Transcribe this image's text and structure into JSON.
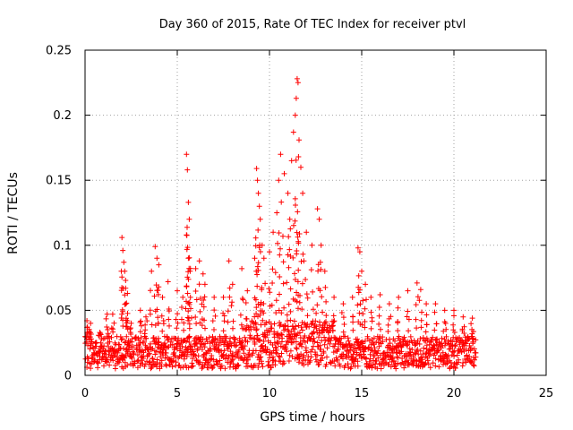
{
  "chart_data": {
    "type": "scatter",
    "title": "Day 360 of 2015, Rate Of TEC Index for receiver ptvl",
    "xlabel": "GPS time / hours",
    "ylabel": "ROTI / TECUs",
    "xlim": [
      0,
      25
    ],
    "ylim": [
      0,
      0.25
    ],
    "x_ticks": [
      0,
      5,
      10,
      15,
      20,
      25
    ],
    "x_tick_labels": [
      "0",
      "5",
      "10",
      "15",
      "20",
      "25"
    ],
    "y_ticks": [
      0,
      0.05,
      0.1,
      0.15,
      0.2,
      0.25
    ],
    "y_tick_labels": [
      "0",
      "0.05",
      "0.1",
      "0.15",
      "0.2",
      "0.25"
    ],
    "grid": true,
    "marker": "+",
    "marker_color": "#ff0000",
    "series": [
      {
        "name": "ROTI",
        "data_x_range": [
          0,
          21.2
        ],
        "baseline_band": [
          0.005,
          0.03
        ],
        "peaks": [
          {
            "x": 0.1,
            "y": 0.042
          },
          {
            "x": 0.3,
            "y": 0.04
          },
          {
            "x": 0.8,
            "y": 0.033
          },
          {
            "x": 1.2,
            "y": 0.047
          },
          {
            "x": 1.5,
            "y": 0.047
          },
          {
            "x": 2.0,
            "y": 0.106
          },
          {
            "x": 2.05,
            "y": 0.096
          },
          {
            "x": 2.1,
            "y": 0.087
          },
          {
            "x": 2.15,
            "y": 0.08
          },
          {
            "x": 2.2,
            "y": 0.073
          },
          {
            "x": 2.3,
            "y": 0.063
          },
          {
            "x": 2.5,
            "y": 0.04
          },
          {
            "x": 3.0,
            "y": 0.05
          },
          {
            "x": 3.3,
            "y": 0.045
          },
          {
            "x": 3.6,
            "y": 0.08
          },
          {
            "x": 3.8,
            "y": 0.099
          },
          {
            "x": 3.9,
            "y": 0.09
          },
          {
            "x": 4.0,
            "y": 0.085
          },
          {
            "x": 4.2,
            "y": 0.06
          },
          {
            "x": 4.5,
            "y": 0.072
          },
          {
            "x": 5.0,
            "y": 0.065
          },
          {
            "x": 5.3,
            "y": 0.06
          },
          {
            "x": 5.5,
            "y": 0.17
          },
          {
            "x": 5.55,
            "y": 0.158
          },
          {
            "x": 5.6,
            "y": 0.133
          },
          {
            "x": 5.65,
            "y": 0.12
          },
          {
            "x": 5.5,
            "y": 0.108
          },
          {
            "x": 5.6,
            "y": 0.09
          },
          {
            "x": 5.7,
            "y": 0.08
          },
          {
            "x": 6.0,
            "y": 0.082
          },
          {
            "x": 6.2,
            "y": 0.088
          },
          {
            "x": 6.4,
            "y": 0.078
          },
          {
            "x": 6.5,
            "y": 0.07
          },
          {
            "x": 7.0,
            "y": 0.06
          },
          {
            "x": 7.5,
            "y": 0.06
          },
          {
            "x": 7.8,
            "y": 0.088
          },
          {
            "x": 8.0,
            "y": 0.07
          },
          {
            "x": 8.5,
            "y": 0.082
          },
          {
            "x": 8.8,
            "y": 0.065
          },
          {
            "x": 9.2,
            "y": 0.09
          },
          {
            "x": 9.3,
            "y": 0.159
          },
          {
            "x": 9.35,
            "y": 0.15
          },
          {
            "x": 9.4,
            "y": 0.14
          },
          {
            "x": 9.45,
            "y": 0.13
          },
          {
            "x": 9.5,
            "y": 0.12
          },
          {
            "x": 9.6,
            "y": 0.1
          },
          {
            "x": 9.7,
            "y": 0.09
          },
          {
            "x": 10.0,
            "y": 0.095
          },
          {
            "x": 10.2,
            "y": 0.11
          },
          {
            "x": 10.4,
            "y": 0.125
          },
          {
            "x": 10.5,
            "y": 0.15
          },
          {
            "x": 10.6,
            "y": 0.17
          },
          {
            "x": 10.8,
            "y": 0.155
          },
          {
            "x": 11.0,
            "y": 0.14
          },
          {
            "x": 11.1,
            "y": 0.12
          },
          {
            "x": 11.2,
            "y": 0.165
          },
          {
            "x": 11.3,
            "y": 0.187
          },
          {
            "x": 11.4,
            "y": 0.2
          },
          {
            "x": 11.45,
            "y": 0.213
          },
          {
            "x": 11.5,
            "y": 0.228
          },
          {
            "x": 11.55,
            "y": 0.225
          },
          {
            "x": 11.6,
            "y": 0.181
          },
          {
            "x": 11.7,
            "y": 0.16
          },
          {
            "x": 11.8,
            "y": 0.14
          },
          {
            "x": 12.0,
            "y": 0.11
          },
          {
            "x": 12.3,
            "y": 0.1
          },
          {
            "x": 12.6,
            "y": 0.128
          },
          {
            "x": 12.7,
            "y": 0.12
          },
          {
            "x": 12.8,
            "y": 0.1
          },
          {
            "x": 13.0,
            "y": 0.08
          },
          {
            "x": 13.5,
            "y": 0.06
          },
          {
            "x": 14.0,
            "y": 0.055
          },
          {
            "x": 14.5,
            "y": 0.06
          },
          {
            "x": 14.8,
            "y": 0.098
          },
          {
            "x": 14.9,
            "y": 0.095
          },
          {
            "x": 15.0,
            "y": 0.08
          },
          {
            "x": 15.2,
            "y": 0.07
          },
          {
            "x": 15.5,
            "y": 0.06
          },
          {
            "x": 16.0,
            "y": 0.062
          },
          {
            "x": 16.5,
            "y": 0.055
          },
          {
            "x": 17.0,
            "y": 0.06
          },
          {
            "x": 17.5,
            "y": 0.065
          },
          {
            "x": 18.0,
            "y": 0.071
          },
          {
            "x": 18.2,
            "y": 0.066
          },
          {
            "x": 18.5,
            "y": 0.055
          },
          {
            "x": 19.0,
            "y": 0.055
          },
          {
            "x": 19.5,
            "y": 0.05
          },
          {
            "x": 20.0,
            "y": 0.05
          },
          {
            "x": 20.5,
            "y": 0.045
          },
          {
            "x": 21.0,
            "y": 0.044
          }
        ]
      }
    ]
  }
}
